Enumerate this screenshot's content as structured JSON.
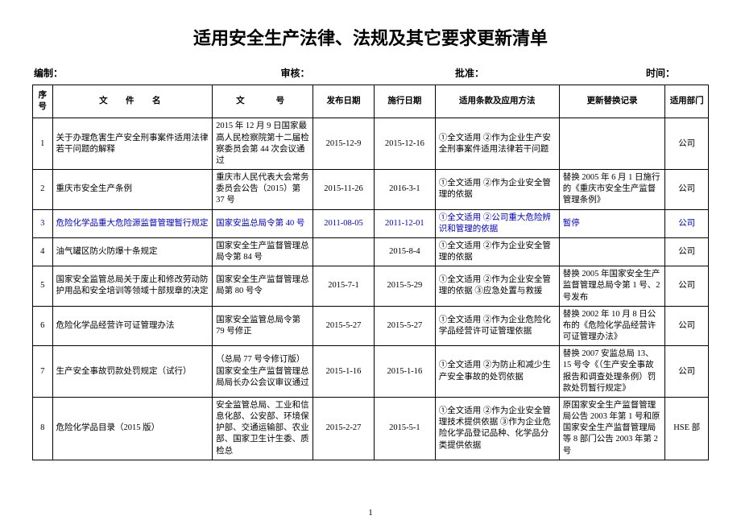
{
  "title": "适用安全生产法律、法规及其它要求更新清单",
  "subheader": {
    "s1": "编制：",
    "s2": "审核：",
    "s3": "批准：",
    "s4": "时间："
  },
  "columns": [
    "序号",
    "文　件　名",
    "文　　号",
    "发布日期",
    "施行日期",
    "适用条款及应用方法",
    "更新替换记录",
    "适用部门"
  ],
  "rows": [
    {
      "seq": "1",
      "name": "关于办理危害生产安全刑事案件适用法律若干问题的解释",
      "docno": "2015 年 12 月 9 日国家最高人民检察院第十二届检察委员会第 44 次会议通过",
      "pub": "2015-12-9",
      "eff": "2015-12-16",
      "scope": "①全文适用 ②作为企业生产安全刑事案件适用法律若干问题",
      "repl": "",
      "dept": "公司",
      "hl": false
    },
    {
      "seq": "2",
      "name": "重庆市安全生产条例",
      "docno": "重庆市人民代表大会常务委员会公告（2015）第 37 号",
      "pub": "2015-11-26",
      "eff": "2016-3-1",
      "scope": "①全文适用 ②作为企业安全管理的依据",
      "repl": "替换 2005 年 6 月 1 日施行的《重庆市安全生产监督管理条例》",
      "dept": "公司",
      "hl": false
    },
    {
      "seq": "3",
      "name": "危险化学品重大危险源监督管理暂行规定",
      "docno": "国家安监总局令第 40 号",
      "pub": "2011-08-05",
      "eff": "2011-12-01",
      "scope": "①全文适用 ②公司重大危险辨识和管理的依据",
      "repl": "暂停",
      "dept": "公司",
      "hl": true
    },
    {
      "seq": "4",
      "name": "油气罐区防火防爆十条规定",
      "docno": "国家安全生产监督管理总局令第 84 号",
      "pub": "",
      "eff": "2015-8-4",
      "scope": "①全文适用 ②作为企业安全管理的依据",
      "repl": "",
      "dept": "公司",
      "hl": false
    },
    {
      "seq": "5",
      "name": "国家安全监管总局关于废止和修改劳动防护用品和安全培训等领域十部规章的决定",
      "docno": "国家安全生产监督管理总局第 80 号令",
      "pub": "2015-7-1",
      "eff": "2015-5-29",
      "scope": "①全文适用 ②作为企业安全管理的依据 ③应急处置与救援",
      "repl": "替换 2005 年国家安全生产监督管理总局令第 1 号、2 号发布",
      "dept": "公司",
      "hl": false
    },
    {
      "seq": "6",
      "name": "危险化学品经营许可证管理办法",
      "docno": "国家安全监管总局令第 79 号修正",
      "pub": "2015-5-27",
      "eff": "2015-5-27",
      "scope": "①全文适用 ②作为企业危险化学品经营许可证管理依据",
      "repl": "替换 2002 年 10 月 8 日公布的《危险化学品经营许可证管理办法》",
      "dept": "公司",
      "hl": false
    },
    {
      "seq": "7",
      "name": "生产安全事故罚款处罚规定（试行）",
      "docno": "（总局 77 号令修订版）国家安全生产监督管理总局局长办公会议审议通过",
      "pub": "2015-1-16",
      "eff": "2015-1-16",
      "scope": "①全文适用 ②为防止和减少生产安全事故的处罚依据",
      "repl": "替换 2007 安监总局 13、15 号令《（生产安全事故报告和调查处理条例）罚款处罚暂行规定》",
      "dept": "公司",
      "hl": false
    },
    {
      "seq": "8",
      "name": "危险化学品目录（2015 版）",
      "docno": "安全监管总局、工业和信息化部、公安部、环境保护部、交通运输部、农业部、国家卫生计生委、质检总",
      "pub": "2015-2-27",
      "eff": "2015-5-1",
      "scope": "①全文适用 ②作为企业安全管理技术提供依据 ③作为企业危险化学品登记品种、化学品分类提供依据",
      "repl": "原国家安全生产监督管理局公告 2003 年第 1 号和原国家安全生产监督管理局等 8 部门公告 2003 年第 2 号",
      "dept": "HSE 部",
      "hl": false
    }
  ],
  "pageNumber": "1"
}
